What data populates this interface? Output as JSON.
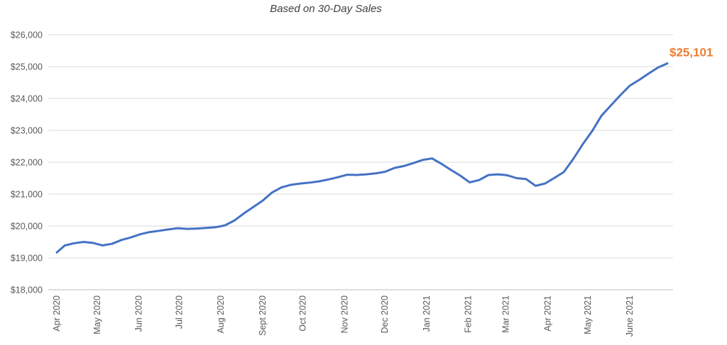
{
  "chart_data": {
    "type": "line",
    "title": "",
    "subtitle": "Based on 30-Day Sales",
    "xlabel": "",
    "ylabel": "",
    "ylim": [
      18000,
      26000
    ],
    "yticks": [
      "$18,000",
      "$19,000",
      "$20,000",
      "$21,000",
      "$22,000",
      "$23,000",
      "$24,000",
      "$25,000",
      "$26,000"
    ],
    "xticks": [
      {
        "label": "Apr 2020",
        "t": 0
      },
      {
        "label": "May 2020",
        "t": 30
      },
      {
        "label": "Jun 2020",
        "t": 61
      },
      {
        "label": "Jul 2020",
        "t": 91
      },
      {
        "label": "Aug 2020",
        "t": 122
      },
      {
        "label": "Sept 2020",
        "t": 153
      },
      {
        "label": "Oct 2020",
        "t": 183
      },
      {
        "label": "Nov 2020",
        "t": 214
      },
      {
        "label": "Dec 2020",
        "t": 244
      },
      {
        "label": "Jan 2021",
        "t": 275
      },
      {
        "label": "Feb 2021",
        "t": 306
      },
      {
        "label": "Mar 2021",
        "t": 334
      },
      {
        "label": "Apr 2021",
        "t": 365
      },
      {
        "label": "May 2021",
        "t": 395
      },
      {
        "label": "June 2021",
        "t": 426
      }
    ],
    "grid": true,
    "legend": "none",
    "colors": {
      "line": "#4472C4",
      "end_label": "#ED7D31",
      "grid": "#D9D9D9"
    },
    "end_label": "$25,101",
    "series": [
      {
        "points": [
          [
            0,
            19170
          ],
          [
            6,
            19390
          ],
          [
            13,
            19460
          ],
          [
            20,
            19500
          ],
          [
            27,
            19470
          ],
          [
            34,
            19390
          ],
          [
            41,
            19440
          ],
          [
            48,
            19560
          ],
          [
            55,
            19640
          ],
          [
            62,
            19740
          ],
          [
            69,
            19810
          ],
          [
            76,
            19850
          ],
          [
            83,
            19890
          ],
          [
            90,
            19930
          ],
          [
            97,
            19910
          ],
          [
            104,
            19920
          ],
          [
            111,
            19940
          ],
          [
            118,
            19960
          ],
          [
            125,
            20020
          ],
          [
            132,
            20170
          ],
          [
            139,
            20390
          ],
          [
            146,
            20590
          ],
          [
            153,
            20790
          ],
          [
            160,
            21050
          ],
          [
            167,
            21210
          ],
          [
            174,
            21290
          ],
          [
            181,
            21330
          ],
          [
            188,
            21360
          ],
          [
            195,
            21400
          ],
          [
            202,
            21460
          ],
          [
            209,
            21530
          ],
          [
            216,
            21610
          ],
          [
            223,
            21600
          ],
          [
            230,
            21620
          ],
          [
            237,
            21650
          ],
          [
            244,
            21700
          ],
          [
            251,
            21820
          ],
          [
            258,
            21880
          ],
          [
            265,
            21970
          ],
          [
            272,
            22070
          ],
          [
            279,
            22120
          ],
          [
            286,
            21950
          ],
          [
            293,
            21760
          ],
          [
            300,
            21580
          ],
          [
            307,
            21370
          ],
          [
            314,
            21440
          ],
          [
            321,
            21600
          ],
          [
            328,
            21620
          ],
          [
            335,
            21590
          ],
          [
            342,
            21500
          ],
          [
            349,
            21470
          ],
          [
            356,
            21260
          ],
          [
            363,
            21330
          ],
          [
            370,
            21510
          ],
          [
            377,
            21690
          ],
          [
            384,
            22100
          ],
          [
            391,
            22560
          ],
          [
            398,
            22970
          ],
          [
            405,
            23460
          ],
          [
            412,
            23780
          ],
          [
            419,
            24100
          ],
          [
            426,
            24400
          ],
          [
            433,
            24580
          ],
          [
            440,
            24780
          ],
          [
            447,
            24970
          ],
          [
            454,
            25101
          ]
        ]
      }
    ]
  }
}
